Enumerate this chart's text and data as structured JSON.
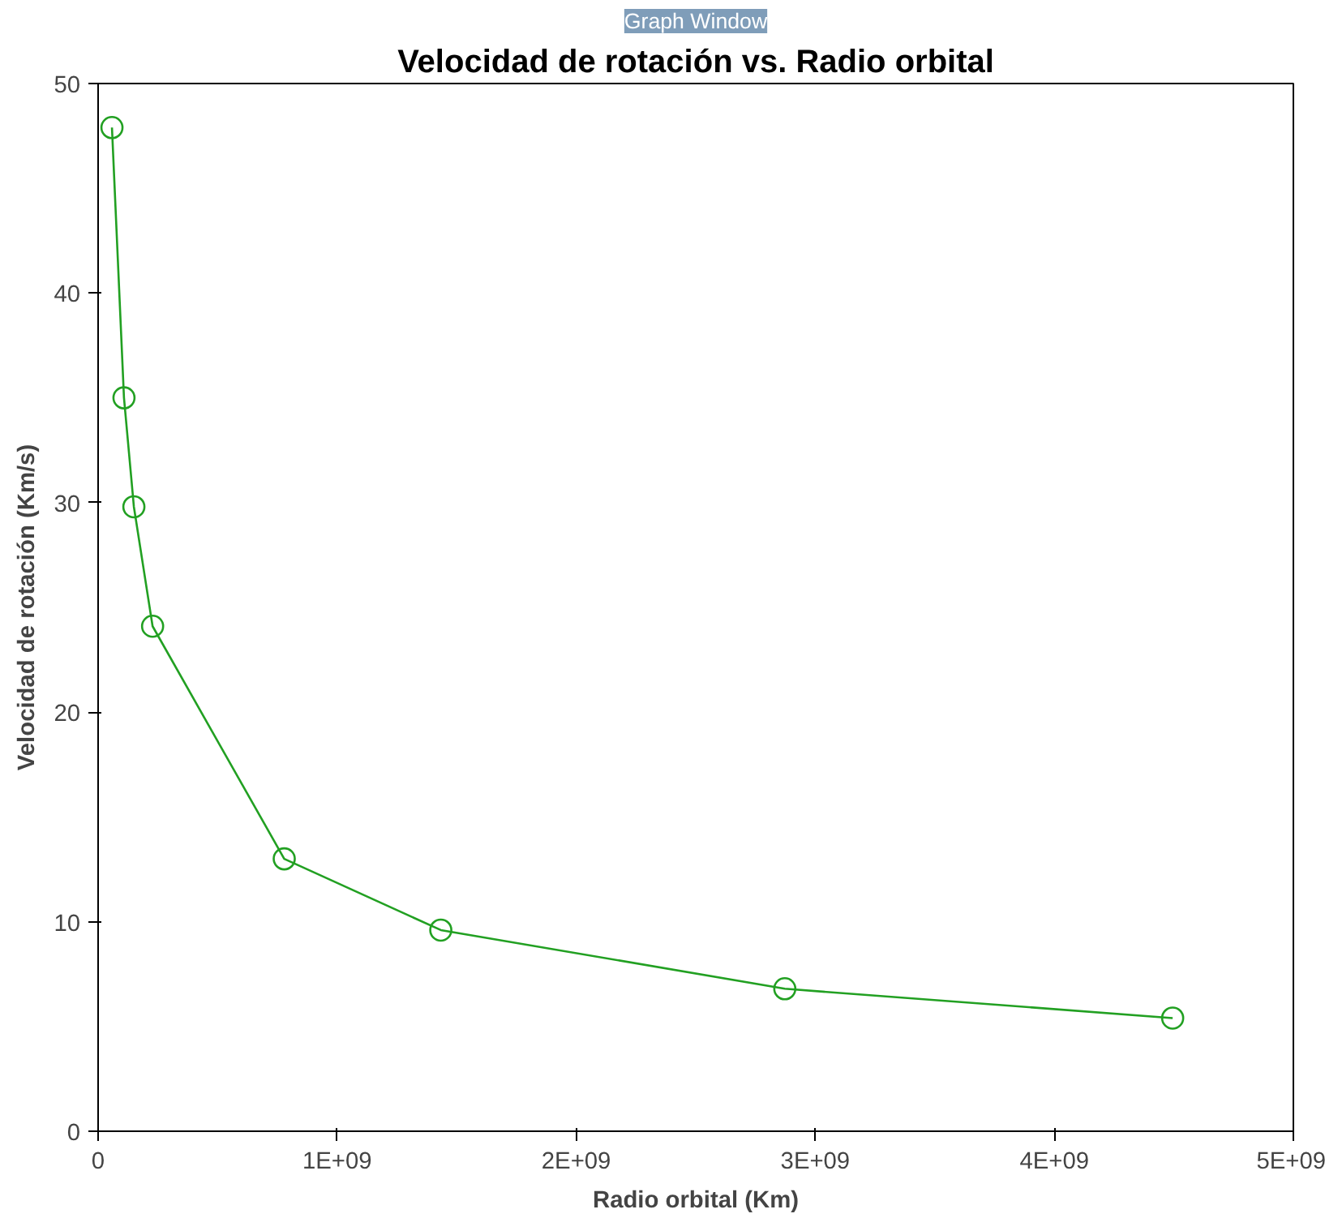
{
  "chart_data": {
    "type": "line",
    "title": "Velocidad de rotación vs. Radio orbital",
    "xlabel": "Radio orbital (Km)",
    "ylabel": "Velocidad de rotación (Km/s)",
    "annotations": [
      "Graph Window"
    ],
    "x": [
      57900000,
      108200000,
      149600000,
      227900000,
      778600000,
      1433500000,
      2872500000,
      4495000000
    ],
    "series": [
      {
        "color": "#22a022",
        "values": [
          47.9,
          35.0,
          29.8,
          24.1,
          13.0,
          9.6,
          6.8,
          5.4
        ]
      }
    ],
    "xlim": [
      0,
      5000000000
    ],
    "xticks": [
      0,
      {
        "value": 1000000000,
        "label": "1E+09"
      },
      {
        "value": 2000000000,
        "label": "2E+09"
      },
      {
        "value": 3000000000,
        "label": "3E+09"
      },
      {
        "value": 4000000000,
        "label": "4E+09"
      },
      {
        "value": 5000000000,
        "label": "5E+09"
      }
    ],
    "ylim": [
      0,
      50
    ],
    "yticks": [
      0,
      10,
      20,
      30,
      40,
      50
    ],
    "grid": false,
    "marker": "circle",
    "line_style": "solid"
  }
}
